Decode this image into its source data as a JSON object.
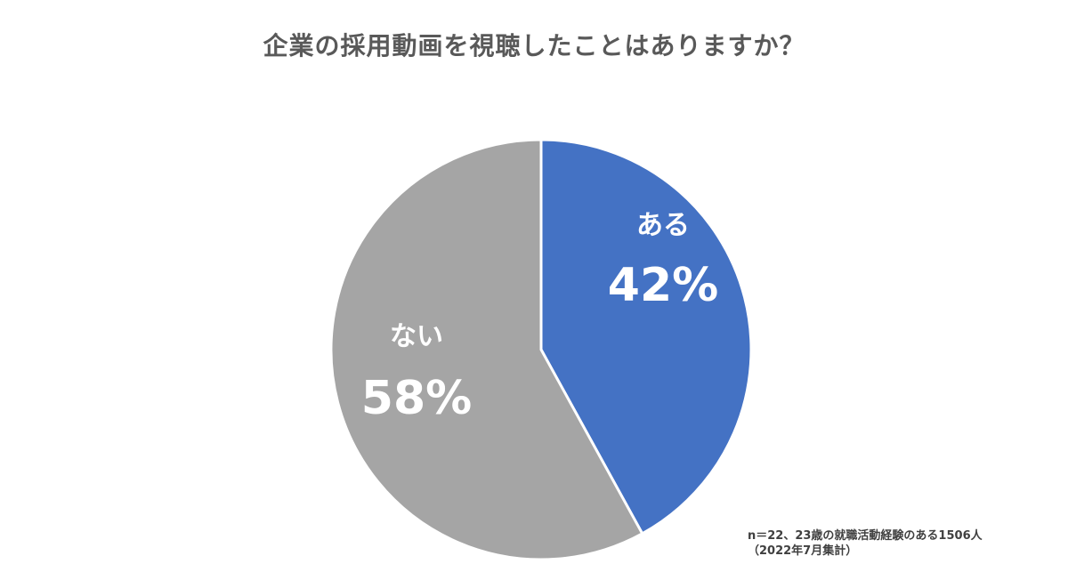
{
  "chart_data": {
    "type": "pie",
    "title": "企業の採用動画を視聴したことはありますか？",
    "slices": [
      {
        "label": "ある",
        "value": 42,
        "value_label": "42%",
        "color": "#4472C4"
      },
      {
        "label": "ない",
        "value": 58,
        "value_label": "58%",
        "color": "#A5A5A5"
      }
    ],
    "start_angle": "12 o'clock",
    "direction": "clockwise"
  },
  "footnote": {
    "line1": "n＝22、23歳の就職活動経験のある1506人",
    "line2": "（2022年7月集計）"
  }
}
